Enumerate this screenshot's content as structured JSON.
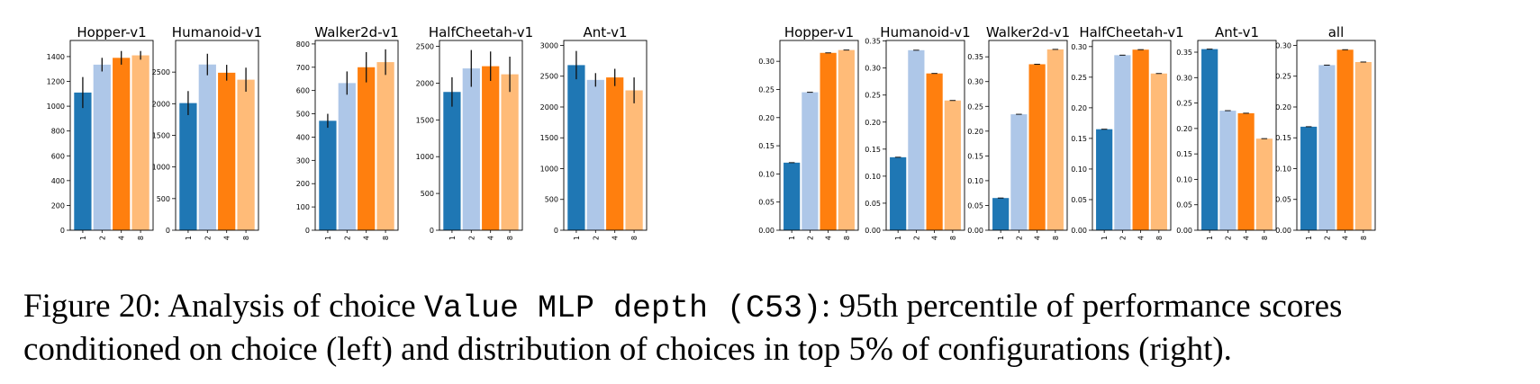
{
  "chart_data": [
    {
      "type": "bar",
      "group": "left",
      "title": "Hopper-v1",
      "categories": [
        "1",
        "2",
        "4",
        "8"
      ],
      "values": [
        1110,
        1335,
        1390,
        1410
      ],
      "errors": [
        125,
        55,
        55,
        35
      ],
      "ylim": [
        0,
        1530
      ],
      "yticks": [
        0,
        200,
        400,
        600,
        800,
        1000,
        1200,
        1400
      ]
    },
    {
      "type": "bar",
      "group": "left",
      "title": "Humanoid-v1",
      "categories": [
        "1",
        "2",
        "4",
        "8"
      ],
      "values": [
        2010,
        2620,
        2490,
        2380
      ],
      "errors": [
        190,
        170,
        125,
        190
      ],
      "ylim": [
        0,
        3000
      ],
      "yticks": [
        0,
        500,
        1000,
        1500,
        2000,
        2500
      ]
    },
    {
      "type": "bar",
      "group": "left",
      "title": "Walker2d-v1",
      "categories": [
        "1",
        "2",
        "4",
        "8"
      ],
      "values": [
        470,
        632,
        700,
        722
      ],
      "errors": [
        30,
        50,
        65,
        55
      ],
      "ylim": [
        0,
        815
      ],
      "yticks": [
        0,
        100,
        200,
        300,
        400,
        500,
        600,
        700,
        800
      ]
    },
    {
      "type": "bar",
      "group": "left",
      "title": "HalfCheetah-v1",
      "categories": [
        "1",
        "2",
        "4",
        "8"
      ],
      "values": [
        1880,
        2200,
        2230,
        2120
      ],
      "errors": [
        200,
        250,
        200,
        240
      ],
      "ylim": [
        0,
        2580
      ],
      "yticks": [
        0,
        500,
        1000,
        1500,
        2000,
        2500
      ]
    },
    {
      "type": "bar",
      "group": "left",
      "title": "Ant-v1",
      "categories": [
        "1",
        "2",
        "4",
        "8"
      ],
      "values": [
        2680,
        2440,
        2480,
        2270
      ],
      "errors": [
        230,
        110,
        140,
        210
      ],
      "ylim": [
        0,
        3080
      ],
      "yticks": [
        0,
        500,
        1000,
        1500,
        2000,
        2500,
        3000
      ]
    },
    {
      "type": "bar",
      "group": "right",
      "title": "Hopper-v1",
      "categories": [
        "1",
        "2",
        "4",
        "8"
      ],
      "values": [
        0.12,
        0.245,
        0.315,
        0.32
      ],
      "errors": [
        0.001,
        0.001,
        0.001,
        0.001
      ],
      "ylim": [
        0,
        0.337
      ],
      "yticks": [
        0,
        0.05,
        0.1,
        0.15,
        0.2,
        0.25,
        0.3
      ],
      "ytick_labels": [
        "0.00",
        "0.05",
        "0.10",
        "0.15",
        "0.20",
        "0.25",
        "0.30"
      ]
    },
    {
      "type": "bar",
      "group": "right",
      "title": "Humanoid-v1",
      "categories": [
        "1",
        "2",
        "4",
        "8"
      ],
      "values": [
        0.135,
        0.333,
        0.29,
        0.24
      ],
      "errors": [
        0.001,
        0.001,
        0.001,
        0.001
      ],
      "ylim": [
        0,
        0.351
      ],
      "yticks": [
        0,
        0.05,
        0.1,
        0.15,
        0.2,
        0.25,
        0.3,
        0.35
      ],
      "ytick_labels": [
        "0.00",
        "0.05",
        "0.10",
        "0.15",
        "0.20",
        "0.25",
        "0.30",
        "0.35"
      ]
    },
    {
      "type": "bar",
      "group": "right",
      "title": "Walker2d-v1",
      "categories": [
        "1",
        "2",
        "4",
        "8"
      ],
      "values": [
        0.065,
        0.234,
        0.335,
        0.365
      ],
      "errors": [
        0.001,
        0.001,
        0.001,
        0.001
      ],
      "ylim": [
        0,
        0.383
      ],
      "yticks": [
        0,
        0.05,
        0.1,
        0.15,
        0.2,
        0.25,
        0.3,
        0.35
      ],
      "ytick_labels": [
        "0.00",
        "0.05",
        "0.10",
        "0.15",
        "0.20",
        "0.25",
        "0.30",
        "0.35"
      ]
    },
    {
      "type": "bar",
      "group": "right",
      "title": "HalfCheetah-v1",
      "categories": [
        "1",
        "2",
        "4",
        "8"
      ],
      "values": [
        0.165,
        0.286,
        0.295,
        0.256
      ],
      "errors": [
        0.001,
        0.001,
        0.001,
        0.001
      ],
      "ylim": [
        0,
        0.31
      ],
      "yticks": [
        0,
        0.05,
        0.1,
        0.15,
        0.2,
        0.25,
        0.3
      ],
      "ytick_labels": [
        "0.00",
        "0.05",
        "0.10",
        "0.15",
        "0.20",
        "0.25",
        "0.30"
      ]
    },
    {
      "type": "bar",
      "group": "right",
      "title": "Ant-v1",
      "categories": [
        "1",
        "2",
        "4",
        "8"
      ],
      "values": [
        0.356,
        0.235,
        0.23,
        0.18
      ],
      "errors": [
        0.001,
        0.001,
        0.001,
        0.001
      ],
      "ylim": [
        0,
        0.373
      ],
      "yticks": [
        0,
        0.05,
        0.1,
        0.15,
        0.2,
        0.25,
        0.3,
        0.35
      ],
      "ytick_labels": [
        "0.00",
        "0.05",
        "0.10",
        "0.15",
        "0.20",
        "0.25",
        "0.30",
        "0.35"
      ]
    },
    {
      "type": "bar",
      "group": "right",
      "title": "all",
      "categories": [
        "1",
        "2",
        "4",
        "8"
      ],
      "values": [
        0.168,
        0.268,
        0.293,
        0.273
      ],
      "errors": [
        0.001,
        0.001,
        0.001,
        0.001
      ],
      "ylim": [
        0,
        0.308
      ],
      "yticks": [
        0,
        0.05,
        0.1,
        0.15,
        0.2,
        0.25,
        0.3
      ],
      "ytick_labels": [
        "0.00",
        "0.05",
        "0.10",
        "0.15",
        "0.20",
        "0.25",
        "0.30"
      ]
    }
  ],
  "colors": [
    "#1f77b4",
    "#aec7e8",
    "#ff7f0e",
    "#ffbb78"
  ],
  "caption": {
    "prefix": "Figure 20: Analysis of choice ",
    "code": "Value MLP depth (C53)",
    "suffix": ": 95th percentile of performance scores",
    "line2": "conditioned on choice (left) and distribution of choices in top 5% of configurations (right)."
  }
}
